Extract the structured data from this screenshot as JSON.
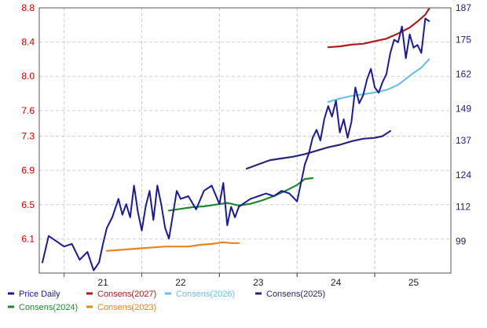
{
  "chart_data": {
    "type": "line",
    "title": "",
    "xlabel": "",
    "ylabel_left": "",
    "ylabel_right": "",
    "x_ticks": [
      "21",
      "22",
      "23",
      "24",
      "25"
    ],
    "x_range": [
      2020.68,
      2025.98
    ],
    "y_left_ticks": [
      "6.1",
      "6.5",
      "6.9",
      "7.3",
      "7.6",
      "8.0",
      "8.4",
      "8.8"
    ],
    "y_left_range": [
      5.7,
      8.8
    ],
    "y_right_ticks": [
      "99",
      "112",
      "124",
      "137",
      "149",
      "162",
      "175",
      "187"
    ],
    "y_right_range": [
      87,
      187
    ],
    "grid": true,
    "legend_position": "bottom",
    "series": [
      {
        "name": "Price Daily",
        "axis": "right",
        "color": "#1a1aa0",
        "x": [
          2020.72,
          2020.8,
          2020.9,
          2021.0,
          2021.1,
          2021.2,
          2021.3,
          2021.38,
          2021.45,
          2021.5,
          2021.55,
          2021.62,
          2021.7,
          2021.75,
          2021.8,
          2021.85,
          2021.9,
          2021.95,
          2022.0,
          2022.05,
          2022.1,
          2022.15,
          2022.2,
          2022.25,
          2022.3,
          2022.35,
          2022.4,
          2022.45,
          2022.5,
          2022.6,
          2022.7,
          2022.8,
          2022.9,
          2023.0,
          2023.05,
          2023.1,
          2023.15,
          2023.2,
          2023.25,
          2023.3,
          2023.35,
          2023.4,
          2023.5,
          2023.6,
          2023.7,
          2023.8,
          2023.9,
          2024.0,
          2024.05,
          2024.1,
          2024.15,
          2024.2,
          2024.25,
          2024.3,
          2024.35,
          2024.4,
          2024.45,
          2024.5,
          2024.55,
          2024.6,
          2024.65,
          2024.7,
          2024.75,
          2024.8,
          2024.85,
          2024.9,
          2024.95,
          2025.0,
          2025.05,
          2025.1,
          2025.15,
          2025.2,
          2025.25,
          2025.3,
          2025.35,
          2025.4,
          2025.45,
          2025.5,
          2025.55,
          2025.6,
          2025.65,
          2025.7
        ],
        "y": [
          91,
          101,
          99,
          97,
          98,
          92,
          95,
          88,
          91,
          98,
          104,
          108,
          115,
          109,
          113,
          108,
          120,
          110,
          103,
          112,
          118,
          107,
          120,
          113,
          104,
          100,
          109,
          118,
          115,
          116,
          111,
          118,
          120,
          113,
          121,
          105,
          112,
          108,
          112,
          113,
          114,
          115,
          116,
          117,
          116,
          118,
          117,
          114,
          121,
          128,
          132,
          138,
          141,
          137,
          145,
          150,
          146,
          152,
          140,
          145,
          138,
          144,
          157,
          151,
          154,
          160,
          164,
          157,
          155,
          159,
          162,
          170,
          175,
          174,
          180,
          168,
          177,
          172,
          173,
          170,
          183,
          182
        ]
      },
      {
        "name": "Consens(2027)",
        "axis": "left",
        "color": "#b01c1c",
        "x": [
          2024.4,
          2024.55,
          2024.7,
          2024.85,
          2025.0,
          2025.15,
          2025.3,
          2025.45,
          2025.55,
          2025.65,
          2025.7
        ],
        "y": [
          8.34,
          8.35,
          8.37,
          8.38,
          8.41,
          8.44,
          8.5,
          8.57,
          8.64,
          8.72,
          8.79
        ]
      },
      {
        "name": "Consens(2026)",
        "axis": "left",
        "color": "#6ec1e6",
        "x": [
          2024.4,
          2024.55,
          2024.7,
          2024.85,
          2025.0,
          2025.15,
          2025.3,
          2025.4,
          2025.5,
          2025.6,
          2025.7
        ],
        "y": [
          7.7,
          7.74,
          7.77,
          7.79,
          7.81,
          7.84,
          7.9,
          7.97,
          8.04,
          8.1,
          8.2
        ]
      },
      {
        "name": "Consens(2025)",
        "axis": "left",
        "color": "#262679",
        "x": [
          2023.35,
          2023.5,
          2023.65,
          2023.8,
          2023.95,
          2024.1,
          2024.25,
          2024.4,
          2024.55,
          2024.7,
          2024.85,
          2025.0,
          2025.1,
          2025.2
        ],
        "y": [
          6.92,
          6.97,
          7.02,
          7.04,
          7.06,
          7.09,
          7.13,
          7.17,
          7.2,
          7.24,
          7.27,
          7.28,
          7.3,
          7.36
        ]
      },
      {
        "name": "Consens(2024)",
        "axis": "left",
        "color": "#1f8a2b",
        "x": [
          2022.35,
          2022.5,
          2022.65,
          2022.8,
          2022.95,
          2023.1,
          2023.25,
          2023.4,
          2023.55,
          2023.7,
          2023.85,
          2024.0,
          2024.1,
          2024.2
        ],
        "y": [
          6.43,
          6.45,
          6.47,
          6.48,
          6.5,
          6.52,
          6.49,
          6.51,
          6.55,
          6.6,
          6.66,
          6.73,
          6.8,
          6.81
        ]
      },
      {
        "name": "Consens(2023)",
        "axis": "left",
        "color": "#e8841f",
        "x": [
          2021.55,
          2021.7,
          2021.85,
          2022.0,
          2022.15,
          2022.3,
          2022.45,
          2022.6,
          2022.75,
          2022.9,
          2023.05,
          2023.15,
          2023.25
        ],
        "y": [
          5.96,
          5.97,
          5.98,
          5.99,
          6.0,
          6.01,
          6.01,
          6.01,
          6.03,
          6.04,
          6.06,
          6.05,
          6.05
        ]
      }
    ]
  }
}
